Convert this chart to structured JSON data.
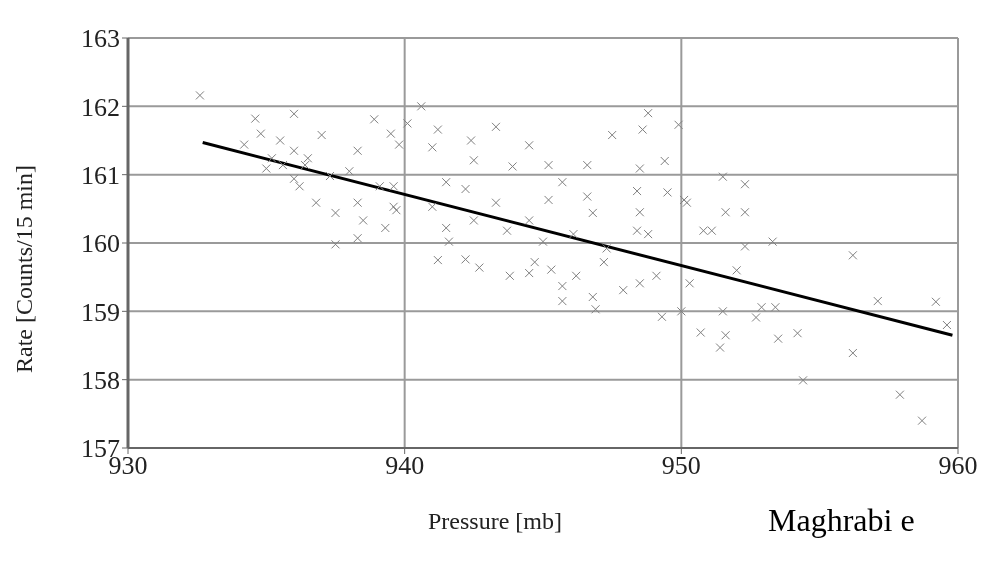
{
  "chart_data": {
    "type": "scatter",
    "xlabel": "Pressure [mb]",
    "ylabel": "Rate [Counts/15 min]",
    "xlim": [
      930,
      960
    ],
    "ylim": [
      157,
      163
    ],
    "xticks": [
      930,
      940,
      950,
      960
    ],
    "yticks": [
      157,
      158,
      159,
      160,
      161,
      162,
      163
    ],
    "grid": true,
    "marker": "cross",
    "annotations": [
      "Maghrabi e"
    ],
    "series": [
      {
        "color": "#808080",
        "x": [
          949.9,
          951.5,
          952.3,
          951.6,
          952.3,
          950.1,
          950.8,
          951.1,
          953.3,
          952.3,
          956.2,
          952.0,
          957.1,
          959.2,
          959.6,
          956.2,
          954.4,
          957.9,
          958.7,
          951.4,
          951.6,
          953.5,
          954.2,
          952.7,
          952.9,
          951.5,
          950.0,
          950.7,
          953.4,
          950.3,
          940.6,
          943.3,
          944.5,
          947.5,
          948.8,
          948.6,
          949.4,
          948.5,
          946.6,
          945.2,
          943.9,
          942.5,
          941.2,
          942.4,
          941.0,
          940.1,
          941.5,
          942.2,
          943.3,
          945.2,
          945.7,
          946.6,
          946.8,
          948.4,
          949.5,
          948.5,
          948.4,
          948.8,
          950.2,
          941.0,
          941.5,
          941.6,
          942.5,
          943.7,
          944.5,
          945.0,
          946.1,
          947.3,
          941.2,
          942.2,
          942.7,
          943.8,
          944.5,
          944.7,
          945.3,
          945.7,
          946.2,
          947.2,
          947.9,
          948.5,
          949.1,
          945.7,
          946.8,
          946.9,
          949.3,
          939.6,
          939.6,
          932.6,
          934.6,
          936.0,
          934.8,
          934.2,
          935.5,
          937.0,
          938.9,
          939.5,
          939.8,
          935.2,
          936.0,
          936.5,
          935.0,
          936.0,
          936.2,
          937.3,
          938.3,
          938.0,
          936.8,
          937.5,
          938.3,
          938.5,
          938.3,
          937.5,
          939.3,
          939.7,
          939.1,
          935.6,
          936.4
        ],
        "values": [
          161.73,
          160.97,
          160.86,
          160.45,
          160.45,
          160.63,
          160.18,
          160.18,
          160.02,
          159.95,
          159.82,
          159.6,
          159.15,
          159.14,
          158.8,
          158.39,
          157.99,
          157.78,
          157.4,
          158.47,
          158.65,
          158.6,
          158.68,
          158.91,
          159.06,
          159.0,
          159.0,
          158.69,
          159.06,
          159.41,
          162.0,
          161.7,
          161.43,
          161.58,
          161.9,
          161.66,
          161.2,
          161.09,
          161.14,
          161.14,
          161.12,
          161.21,
          161.66,
          161.5,
          161.4,
          161.75,
          160.89,
          160.79,
          160.59,
          160.63,
          160.89,
          160.68,
          160.44,
          160.76,
          160.74,
          160.45,
          160.18,
          160.13,
          160.59,
          160.53,
          160.22,
          160.02,
          160.33,
          160.18,
          160.33,
          160.02,
          160.13,
          159.92,
          159.75,
          159.76,
          159.64,
          159.52,
          159.56,
          159.72,
          159.61,
          159.37,
          159.52,
          159.72,
          159.31,
          159.41,
          159.52,
          159.15,
          159.21,
          159.03,
          158.92,
          160.83,
          160.53,
          162.16,
          161.82,
          161.89,
          161.6,
          161.44,
          161.5,
          161.58,
          161.81,
          161.6,
          161.44,
          161.24,
          161.35,
          161.24,
          161.09,
          160.94,
          160.83,
          160.98,
          161.35,
          161.05,
          160.59,
          160.44,
          160.59,
          160.33,
          160.07,
          159.98,
          160.22,
          160.48,
          160.83,
          161.14,
          161.14
        ]
      },
      {
        "type": "line",
        "color": "#000000",
        "marker": "none",
        "x": [
          932.7,
          959.8
        ],
        "values": [
          161.47,
          158.65
        ]
      }
    ]
  }
}
